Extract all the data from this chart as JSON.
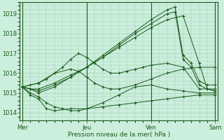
{
  "background_color": "#cceedd",
  "plot_bg_color": "#cceedd",
  "line_color": "#1a5c1a",
  "marker": "+",
  "marker_size": 3,
  "marker_lw": 0.8,
  "grid_color": "#99ccaa",
  "ylabel_ticks": [
    1014,
    1015,
    1016,
    1017,
    1018,
    1019
  ],
  "x_tick_labels": [
    "Mer",
    "Jeu",
    "Ven",
    "Sam"
  ],
  "x_tick_positions": [
    0,
    48,
    96,
    144
  ],
  "xlabel": "Pression niveau de la mer( hPa )",
  "xlim": [
    -2,
    146
  ],
  "ylim": [
    1013.6,
    1019.6
  ],
  "series_data": [
    {
      "x": [
        0,
        6,
        12,
        18,
        24,
        36,
        48,
        60,
        72,
        84,
        96,
        108,
        120,
        132,
        144
      ],
      "y": [
        1015.3,
        1014.9,
        1014.7,
        1014.2,
        1014.1,
        1014.2,
        1014.2,
        1014.3,
        1014.4,
        1014.5,
        1014.6,
        1014.7,
        1014.8,
        1014.9,
        1014.9
      ]
    },
    {
      "x": [
        0,
        6,
        12,
        18,
        24,
        30,
        36,
        42,
        48,
        60,
        72,
        84,
        96,
        108,
        120,
        132,
        144
      ],
      "y": [
        1015.3,
        1015.0,
        1014.8,
        1014.5,
        1014.3,
        1014.2,
        1014.1,
        1014.1,
        1014.2,
        1014.5,
        1014.9,
        1015.3,
        1015.4,
        1015.2,
        1015.1,
        1015.0,
        1015.0
      ]
    },
    {
      "x": [
        0,
        12,
        24,
        36,
        42,
        48,
        54,
        60,
        66,
        72,
        84,
        96,
        108,
        120,
        132,
        144
      ],
      "y": [
        1015.3,
        1015.5,
        1016.0,
        1016.2,
        1016.1,
        1015.8,
        1015.5,
        1015.3,
        1015.2,
        1015.2,
        1015.4,
        1015.7,
        1016.0,
        1016.2,
        1016.3,
        1016.3
      ]
    },
    {
      "x": [
        0,
        6,
        12,
        18,
        24,
        30,
        36,
        42,
        48,
        54,
        60,
        66,
        72,
        78,
        84,
        90,
        96,
        108,
        120,
        132,
        144
      ],
      "y": [
        1015.3,
        1015.4,
        1015.5,
        1015.7,
        1016.0,
        1016.3,
        1016.7,
        1017.0,
        1016.8,
        1016.5,
        1016.2,
        1016.0,
        1016.0,
        1016.1,
        1016.2,
        1016.3,
        1016.4,
        1016.5,
        1016.3,
        1015.2,
        1015.2
      ]
    },
    {
      "x": [
        0,
        6,
        12,
        24,
        36,
        48,
        60,
        72,
        84,
        96,
        108,
        120,
        132,
        138,
        144
      ],
      "y": [
        1015.3,
        1015.2,
        1015.2,
        1015.5,
        1015.9,
        1016.3,
        1016.8,
        1017.3,
        1017.8,
        1018.3,
        1018.7,
        1018.9,
        1016.5,
        1015.2,
        1015.1
      ]
    },
    {
      "x": [
        0,
        6,
        12,
        24,
        36,
        48,
        60,
        72,
        84,
        96,
        108,
        114,
        120,
        126,
        132,
        138,
        144
      ],
      "y": [
        1015.3,
        1015.2,
        1015.1,
        1015.4,
        1015.8,
        1016.3,
        1016.8,
        1017.4,
        1018.0,
        1018.5,
        1019.0,
        1019.1,
        1016.7,
        1016.3,
        1015.4,
        1015.2,
        1015.1
      ]
    },
    {
      "x": [
        0,
        6,
        12,
        24,
        36,
        48,
        60,
        72,
        84,
        96,
        108,
        114,
        120,
        126,
        132,
        138,
        144
      ],
      "y": [
        1015.3,
        1015.2,
        1015.0,
        1015.3,
        1015.8,
        1016.3,
        1016.9,
        1017.5,
        1018.1,
        1018.7,
        1019.2,
        1019.35,
        1016.9,
        1016.5,
        1015.6,
        1015.4,
        1015.4
      ]
    }
  ]
}
